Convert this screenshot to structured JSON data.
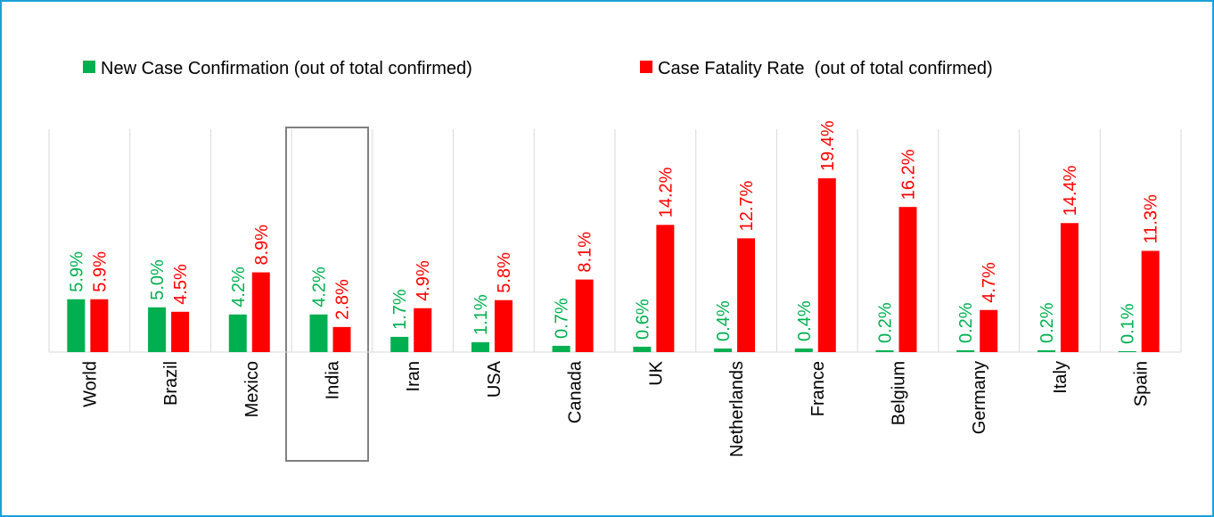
{
  "chart_data": {
    "type": "bar",
    "categories": [
      "World",
      "Brazil",
      "Mexico",
      "India",
      "Iran",
      "USA",
      "Canada",
      "UK",
      "Netherlands",
      "France",
      "Belgium",
      "Germany",
      "Italy",
      "Spain"
    ],
    "series": [
      {
        "name": "New Case Confirmation (out of total confirmed)",
        "color": "#00b050",
        "values": [
          5.9,
          5.0,
          4.2,
          4.2,
          1.7,
          1.1,
          0.7,
          0.6,
          0.4,
          0.4,
          0.2,
          0.2,
          0.2,
          0.1
        ],
        "value_labels": [
          "5.9%",
          "5.0%",
          "4.2%",
          "4.2%",
          "1.7%",
          "1.1%",
          "0.7%",
          "0.6%",
          "0.4%",
          "0.4%",
          "0.2%",
          "0.2%",
          "0.2%",
          "0.1%"
        ]
      },
      {
        "name": "Case Fatality Rate  (out of total confirmed)",
        "color": "#ff0000",
        "values": [
          5.9,
          4.5,
          8.9,
          2.8,
          4.9,
          5.8,
          8.1,
          14.2,
          12.7,
          19.4,
          16.2,
          4.7,
          14.4,
          11.3
        ],
        "value_labels": [
          "5.9%",
          "4.5%",
          "8.9%",
          "2.8%",
          "4.9%",
          "5.8%",
          "8.1%",
          "14.2%",
          "12.7%",
          "19.4%",
          "16.2%",
          "4.7%",
          "14.4%",
          "11.3%"
        ]
      }
    ]
  }
}
